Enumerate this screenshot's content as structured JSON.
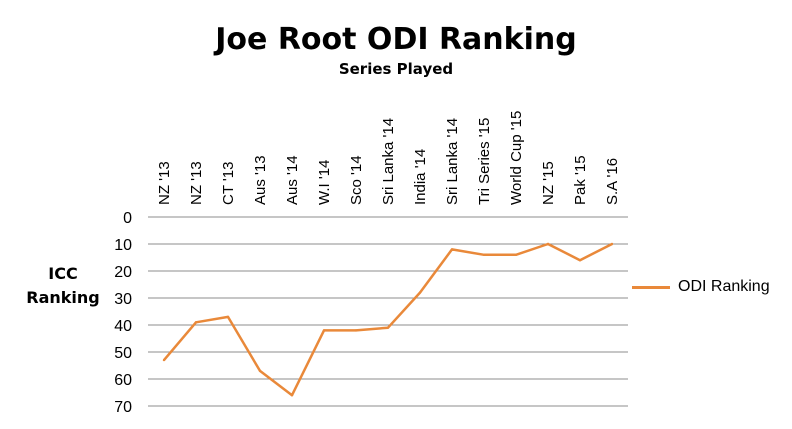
{
  "chart_data": {
    "type": "line",
    "title": "Joe Root ODI Ranking",
    "xlabel": "Series Played",
    "ylabel": "ICC Ranking",
    "categories": [
      "NZ '13",
      "NZ '13",
      "CT '13",
      "Aus '13",
      "Aus '14",
      "W.I '14",
      "Sco '14",
      "Sri Lanka '14",
      "India '14",
      "Sri Lanka '14",
      "Tri Series '15",
      "World Cup '15",
      "NZ '15",
      "Pak '15",
      "S.A '16"
    ],
    "series": [
      {
        "name": "ODI Ranking",
        "values": [
          53,
          39,
          37,
          57,
          66,
          42,
          42,
          41,
          28,
          12,
          14,
          14,
          10,
          16,
          10
        ],
        "color": "#E9893A"
      }
    ],
    "yticks": [
      0,
      10,
      20,
      30,
      40,
      50,
      60,
      70
    ],
    "ylim": [
      0,
      70
    ],
    "y_inverted": true,
    "x_axis_position": "top",
    "grid": "horizontal",
    "legend_position": "right"
  }
}
